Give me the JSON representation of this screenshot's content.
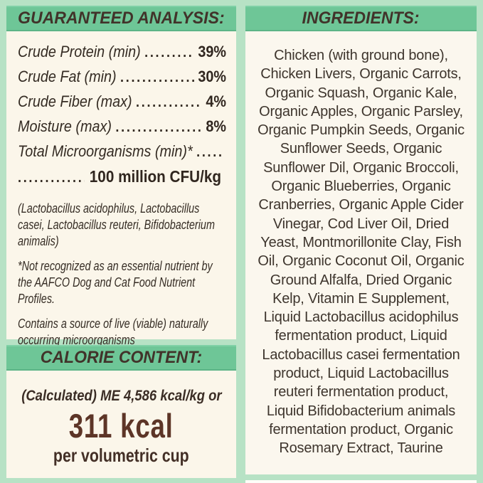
{
  "colors": {
    "background_mint": "#b7e2c5",
    "header_green": "#6ec697",
    "panel_cream": "#fbf6ea",
    "text_dark_brown": "#352b23",
    "kcal_brown": "#5d3527"
  },
  "guaranteed_analysis": {
    "title": "GUARANTEED ANALYSIS:",
    "rows": [
      {
        "label": "Crude Protein (min)",
        "value": "39%"
      },
      {
        "label": "Crude Fat (min)",
        "value": "30%"
      },
      {
        "label": "Crude Fiber (max)",
        "value": "4%"
      },
      {
        "label": "Moisture (max)",
        "value": "8%"
      }
    ],
    "microorganisms_label": "Total Microorganisms (min)*",
    "microorganisms_value": "100 million CFU/kg",
    "notes": [
      "(Lactobacillus acidophilus, Lactobacillus\ncasei, Lactobacillus reuteri, Bifidobacterium\nanimalis)",
      "*Not recognized as an essential nutrient by\nthe AAFCO Dog and Cat Food Nutrient\nProfiles.",
      "Contains a source of live (viable) naturally\noccurring microorganisms"
    ]
  },
  "calorie_content": {
    "title": "CALORIE CONTENT:",
    "me_line": "(Calculated) ME 4,586 kcal/kg or",
    "kcal_value": "311 kcal",
    "kcal_unit": "per volumetric cup"
  },
  "ingredients": {
    "title": "INGREDIENTS:",
    "text": "Chicken (with ground bone),\nChicken Livers, Organic Carrots,\nOrganic Squash, Organic Kale,\nOrganic Apples, Organic Parsley,\nOrganic Pumpkin Seeds, Organic\nSunflower Seeds, Organic\nSunflower Dil, Organic Broccoli,\nOrganic Blueberries, Organic\nCranberries, Organic Apple Cider\nVinegar, Cod Liver Oil, Dried\nYeast, Montmorillonite Clay, Fish\nOil, Organic Coconut Oil, Organic\nGround Alfalfa, Dried Organic\nKelp, Vitamin E Supplement,\nLiquid Lactobacillus acidophilus\nfermentation product, Liquid\nLactobacillus casei fermentation\nproduct, Liquid Lactobacillus\nreuteri fermentation product,\nLiquid Bifidobacterium animals\nfermentation product, Organic\nRosemary Extract, Taurine"
  }
}
